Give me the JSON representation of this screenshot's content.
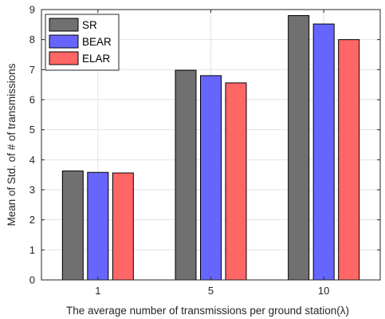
{
  "chart_data": {
    "type": "bar",
    "categories": [
      "1",
      "5",
      "10"
    ],
    "series": [
      {
        "name": "SR",
        "color": "#707070",
        "values": [
          3.63,
          6.98,
          8.8
        ]
      },
      {
        "name": "BEAR",
        "color": "#6666ff",
        "values": [
          3.58,
          6.8,
          8.52
        ]
      },
      {
        "name": "ELAR",
        "color": "#ff6666",
        "values": [
          3.56,
          6.56,
          8.0
        ]
      }
    ],
    "title": "",
    "xlabel": "The average number of  transmissions per ground station(λ)",
    "ylabel": "Mean of Std. of # of transmissions",
    "ylim": [
      0,
      9
    ],
    "yticks": [
      "0",
      "1",
      "2",
      "3",
      "4",
      "5",
      "6",
      "7",
      "8",
      "9"
    ],
    "grid": true,
    "legend": "top-left"
  }
}
